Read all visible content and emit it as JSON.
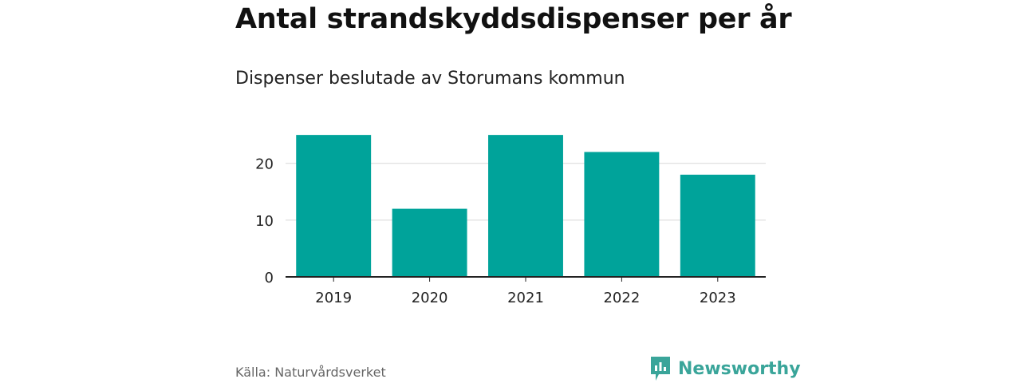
{
  "chart_data": {
    "type": "bar",
    "title": "Antal strandskyddsdispenser per år",
    "subtitle": "Dispenser beslutade av Storumans kommun",
    "categories": [
      "2019",
      "2020",
      "2021",
      "2022",
      "2023"
    ],
    "values": [
      25,
      12,
      25,
      22,
      18
    ],
    "xlabel": "",
    "ylabel": "",
    "yticks": [
      0,
      10,
      20
    ],
    "ylim": [
      0,
      26
    ],
    "grid": true,
    "bar_color": "#00a39a"
  },
  "footer": {
    "source": "Källa: Naturvårdsverket",
    "brand": "Newsworthy",
    "brand_color": "#3aa59a",
    "brand_icon": "bar-chart-speech-bubble-icon"
  }
}
